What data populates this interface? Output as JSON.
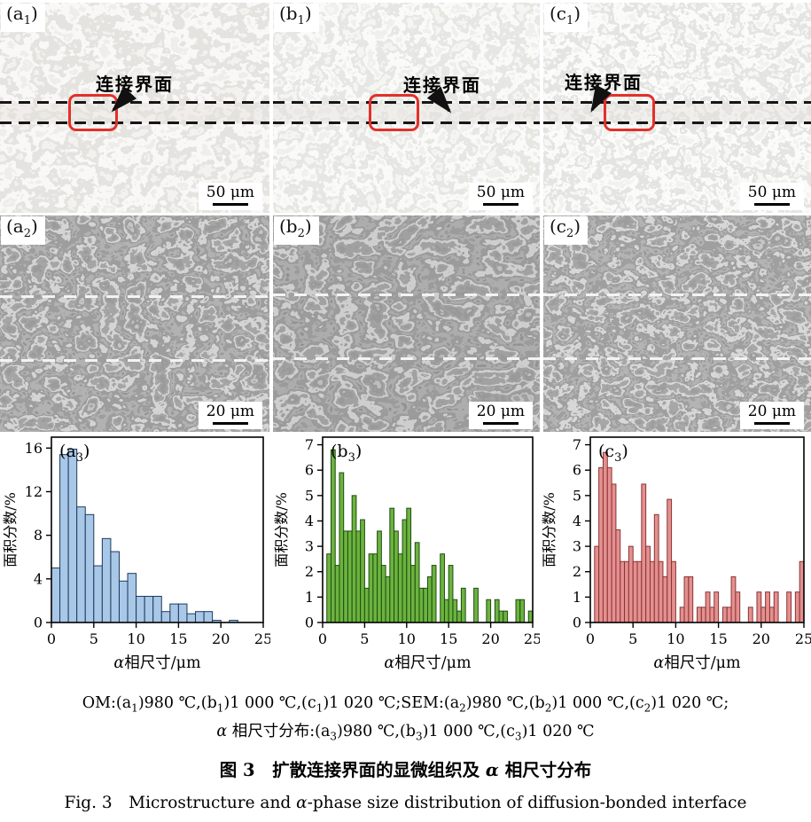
{
  "figure": {
    "colors": {
      "roi_red": "#e2302a",
      "om_dash": "#161616",
      "sem_dash": "#f3f3f3"
    },
    "om_row": {
      "panels": [
        {
          "id": "a1",
          "label": {
            "base": "(a",
            "sub": "1",
            "close": ")"
          },
          "annotation": "连接界面",
          "scale_bar": "50 μm"
        },
        {
          "id": "b1",
          "label": {
            "base": "(b",
            "sub": "1",
            "close": ")"
          },
          "annotation": "连接界面",
          "scale_bar": "50 μm"
        },
        {
          "id": "c1",
          "label": {
            "base": "(c",
            "sub": "1",
            "close": ")"
          },
          "annotation": "连接界面",
          "scale_bar": "50 μm"
        }
      ]
    },
    "sem_row": {
      "panels": [
        {
          "id": "a2",
          "label": {
            "base": "(a",
            "sub": "2",
            "close": ")"
          },
          "scale_bar": "20 μm"
        },
        {
          "id": "b2",
          "label": {
            "base": "(b",
            "sub": "2",
            "close": ")"
          },
          "scale_bar": "20 μm"
        },
        {
          "id": "c2",
          "label": {
            "base": "(c",
            "sub": "2",
            "close": ")"
          },
          "scale_bar": "20 μm"
        }
      ]
    },
    "captions": {
      "line1_parts": [
        {
          "t": "OM:(a"
        },
        {
          "t": "1",
          "s": "sub"
        },
        {
          "t": ")980 ℃,(b"
        },
        {
          "t": "1",
          "s": "sub"
        },
        {
          "t": ")1 000 ℃,(c"
        },
        {
          "t": "1",
          "s": "sub"
        },
        {
          "t": ")1 020 ℃;SEM:(a"
        },
        {
          "t": "2",
          "s": "sub"
        },
        {
          "t": ")980 ℃,(b"
        },
        {
          "t": "2",
          "s": "sub"
        },
        {
          "t": ")1 000 ℃,(c"
        },
        {
          "t": "2",
          "s": "sub"
        },
        {
          "t": ")1 020 ℃;"
        }
      ],
      "line2_parts": [
        {
          "t": "α",
          "s": "i"
        },
        {
          "t": " 相尺寸分布:(a"
        },
        {
          "t": "3",
          "s": "sub"
        },
        {
          "t": ")980 ℃,(b"
        },
        {
          "t": "3",
          "s": "sub"
        },
        {
          "t": ")1 000 ℃,(c"
        },
        {
          "t": "3",
          "s": "sub"
        },
        {
          "t": ")1 020 ℃"
        }
      ],
      "title_zh_parts": [
        {
          "t": "图 3　扩散连接界面的显微组织及 "
        },
        {
          "t": "α",
          "s": "bi"
        },
        {
          "t": " 相尺寸分布"
        }
      ],
      "title_en_parts": [
        {
          "t": "Fig. 3　Microstructure and "
        },
        {
          "t": "α",
          "s": "i"
        },
        {
          "t": "-phase size distribution of diffusion-bonded interface"
        }
      ]
    }
  },
  "chart_data": [
    {
      "name": "a3",
      "type": "bar",
      "label": {
        "base": "(a",
        "sub": "3",
        "close": ")"
      },
      "xlabel_parts": [
        {
          "t": "α",
          "s": "i"
        },
        {
          "t": "相尺寸/μm"
        }
      ],
      "ylabel": "面积分数/%",
      "xlim": [
        0,
        25
      ],
      "ylim": [
        0,
        17
      ],
      "xticks": [
        0,
        5,
        10,
        15,
        20,
        25
      ],
      "yticks": [
        0,
        4,
        8,
        12,
        16
      ],
      "bin_start": 0,
      "bin_width": 1,
      "values": [
        5.0,
        15.4,
        15.9,
        10.6,
        9.9,
        5.2,
        7.7,
        6.5,
        3.8,
        4.5,
        2.4,
        2.4,
        2.4,
        1.0,
        1.7,
        1.7,
        0.8,
        1.0,
        1.0,
        0.2,
        0,
        0.2,
        0,
        0,
        0
      ],
      "fill": "#a9c7e6",
      "edge": "#1c3a5e",
      "grid": false,
      "legend": "none"
    },
    {
      "name": "b3",
      "type": "bar",
      "label": {
        "base": "(b",
        "sub": "3",
        "close": ")"
      },
      "xlabel_parts": [
        {
          "t": "α",
          "s": "i"
        },
        {
          "t": "相尺寸/μm"
        }
      ],
      "ylabel": "面积分数/%",
      "xlim": [
        0,
        25
      ],
      "ylim": [
        0,
        7.3
      ],
      "xticks": [
        0,
        5,
        10,
        15,
        20,
        25
      ],
      "yticks": [
        0,
        1,
        2,
        3,
        4,
        5,
        6,
        7
      ],
      "bin_start": 0.5,
      "bin_width": 0.5,
      "values": [
        2.7,
        6.8,
        2.25,
        5.9,
        3.6,
        3.6,
        5.0,
        3.6,
        4.05,
        1.35,
        2.7,
        2.7,
        3.6,
        2.25,
        1.8,
        4.5,
        3.6,
        2.7,
        4.05,
        4.5,
        2.25,
        3.15,
        1.35,
        1.35,
        1.8,
        2.25,
        0,
        2.7,
        0.9,
        2.25,
        0.9,
        0.45,
        1.35,
        0,
        0,
        1.35,
        0,
        0,
        0.9,
        0,
        0.9,
        0.45,
        0.45,
        0,
        0,
        0.9,
        0.9,
        0,
        0.45
      ],
      "fill": "#6cb33f",
      "edge": "#1e4d10",
      "grid": false,
      "legend": "none"
    },
    {
      "name": "c3",
      "type": "bar",
      "label": {
        "base": "(c",
        "sub": "3",
        "close": ")"
      },
      "xlabel_parts": [
        {
          "t": "α",
          "s": "i"
        },
        {
          "t": "相尺寸/μm"
        }
      ],
      "ylabel": "面积分数/%",
      "xlim": [
        0,
        25
      ],
      "ylim": [
        0,
        7.3
      ],
      "xticks": [
        0,
        5,
        10,
        15,
        20,
        25
      ],
      "yticks": [
        0,
        1,
        2,
        3,
        4,
        5,
        6,
        7
      ],
      "bin_start": 0.5,
      "bin_width": 0.5,
      "values": [
        3.0,
        6.1,
        6.7,
        6.1,
        5.45,
        3.65,
        2.4,
        2.4,
        3.0,
        2.4,
        2.4,
        5.45,
        3.0,
        2.4,
        4.25,
        2.4,
        1.8,
        4.85,
        2.4,
        0,
        0.6,
        1.8,
        1.8,
        0,
        0.6,
        0.6,
        1.2,
        0.6,
        1.2,
        0,
        0.6,
        0.6,
        1.8,
        1.2,
        0,
        0,
        0.6,
        0,
        1.2,
        0.6,
        1.2,
        0.6,
        1.2,
        0,
        0,
        1.2,
        0,
        1.2,
        2.4
      ],
      "fill": "#e59090",
      "edge": "#8a3434",
      "grid": false,
      "legend": "none"
    }
  ]
}
